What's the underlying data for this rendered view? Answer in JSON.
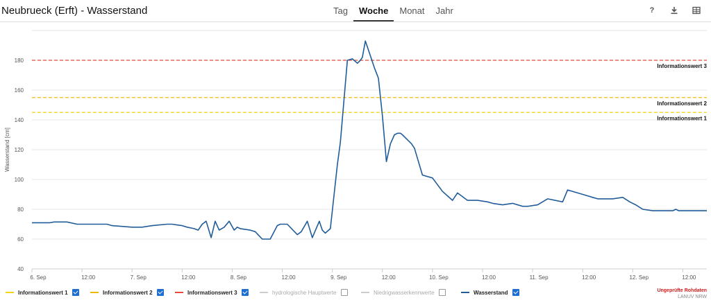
{
  "header": {
    "title": "Neubrueck (Erft) - Wasserstand",
    "tabs": [
      "Tag",
      "Woche",
      "Monat",
      "Jahr"
    ],
    "active_tab": "Woche",
    "tools": [
      {
        "name": "help-icon",
        "glyph": "?"
      },
      {
        "name": "download-icon",
        "glyph": "download"
      },
      {
        "name": "table-icon",
        "glyph": "table"
      }
    ]
  },
  "legend": {
    "items": [
      {
        "label": "Informationswert 1",
        "color": "#f5d317",
        "style": "dashed",
        "checked": true,
        "enabled": true
      },
      {
        "label": "Informationswert 2",
        "color": "#f2b705",
        "style": "dashed",
        "checked": true,
        "enabled": true
      },
      {
        "label": "Informationswert 3",
        "color": "#e8493a",
        "style": "dashed",
        "checked": true,
        "enabled": true
      },
      {
        "label": "hydrologische Hauptwerte",
        "color": "#cccccc",
        "style": "solid",
        "checked": false,
        "enabled": false
      },
      {
        "label": "Niedrigwasserkennwerte",
        "color": "#cccccc",
        "style": "solid",
        "checked": false,
        "enabled": false
      },
      {
        "label": "Wasserstand",
        "color": "#1f5c99",
        "style": "solid",
        "checked": true,
        "enabled": true
      }
    ]
  },
  "footer": {
    "note": "Ungeprüfte Rohdaten",
    "source": "LANUV NRW"
  },
  "chart_data": {
    "type": "line",
    "ylabel": "Wasserstand [cm]",
    "xlabel": "",
    "ylim": [
      40,
      200
    ],
    "xlim": [
      0,
      6.74
    ],
    "yticks": [
      40,
      60,
      80,
      100,
      120,
      140,
      160,
      180
    ],
    "xticks": [
      {
        "x": 0,
        "label": "6. Sep"
      },
      {
        "x": 0.5,
        "label": "12:00"
      },
      {
        "x": 1,
        "label": "7. Sep"
      },
      {
        "x": 1.5,
        "label": "12:00"
      },
      {
        "x": 2,
        "label": "8. Sep"
      },
      {
        "x": 2.5,
        "label": "12:00"
      },
      {
        "x": 3,
        "label": "9. Sep"
      },
      {
        "x": 3.5,
        "label": "12:00"
      },
      {
        "x": 4,
        "label": "10. Sep"
      },
      {
        "x": 4.5,
        "label": "12:00"
      },
      {
        "x": 5,
        "label": "11. Sep"
      },
      {
        "x": 5.5,
        "label": "12:00"
      },
      {
        "x": 6,
        "label": "12. Sep"
      },
      {
        "x": 6.5,
        "label": "12:00"
      }
    ],
    "grid": true,
    "thresholds": [
      {
        "name": "Informationswert 1",
        "value": 145,
        "color": "#f5d317"
      },
      {
        "name": "Informationswert 2",
        "value": 155,
        "color": "#f2b705"
      },
      {
        "name": "Informationswert 3",
        "value": 180,
        "color": "#e8493a"
      }
    ],
    "series": [
      {
        "name": "Wasserstand",
        "color": "#1f5c99",
        "x": [
          0,
          0.18,
          0.22,
          0.35,
          0.45,
          0.55,
          0.75,
          0.8,
          1.0,
          1.1,
          1.2,
          1.35,
          1.4,
          1.5,
          1.55,
          1.62,
          1.66,
          1.7,
          1.74,
          1.79,
          1.83,
          1.87,
          1.92,
          1.97,
          2.02,
          2.05,
          2.08,
          2.18,
          2.23,
          2.3,
          2.38,
          2.45,
          2.48,
          2.55,
          2.65,
          2.69,
          2.75,
          2.8,
          2.87,
          2.9,
          2.93,
          2.98,
          3.05,
          3.08,
          3.15,
          3.2,
          3.25,
          3.28,
          3.3,
          3.33,
          3.37,
          3.42,
          3.46,
          3.5,
          3.54,
          3.58,
          3.62,
          3.65,
          3.68,
          3.7,
          3.73,
          3.76,
          3.79,
          3.82,
          3.9,
          4.0,
          4.1,
          4.2,
          4.25,
          4.35,
          4.4,
          4.45,
          4.55,
          4.6,
          4.7,
          4.8,
          4.9,
          4.95,
          5.05,
          5.15,
          5.3,
          5.35,
          5.45,
          5.55,
          5.6,
          5.65,
          5.8,
          5.9,
          5.97,
          6.03,
          6.1,
          6.2,
          6.35,
          6.4,
          6.43,
          6.46,
          6.5,
          6.6,
          6.65,
          6.74
        ],
        "values": [
          71,
          71,
          71.5,
          71.5,
          70,
          70,
          70,
          69,
          68,
          68,
          69,
          70,
          70,
          69,
          68,
          67,
          66,
          70,
          72,
          61,
          72,
          66,
          68,
          72,
          66,
          68,
          67,
          66,
          65,
          60,
          60,
          69,
          70,
          70,
          63,
          65,
          72,
          61,
          72,
          66,
          64,
          67,
          110,
          125,
          180,
          181,
          178,
          180,
          182,
          193,
          185,
          175,
          168,
          143,
          112,
          124,
          130,
          131,
          131,
          130,
          128,
          126,
          124,
          121,
          103,
          101,
          92,
          86,
          91,
          86,
          86,
          86,
          85,
          84,
          83,
          84,
          82,
          82,
          83,
          87,
          85,
          93,
          91,
          89,
          88,
          87,
          87,
          88,
          85,
          83,
          80,
          79,
          79,
          79,
          80,
          79,
          79,
          79,
          79,
          79
        ]
      }
    ]
  }
}
